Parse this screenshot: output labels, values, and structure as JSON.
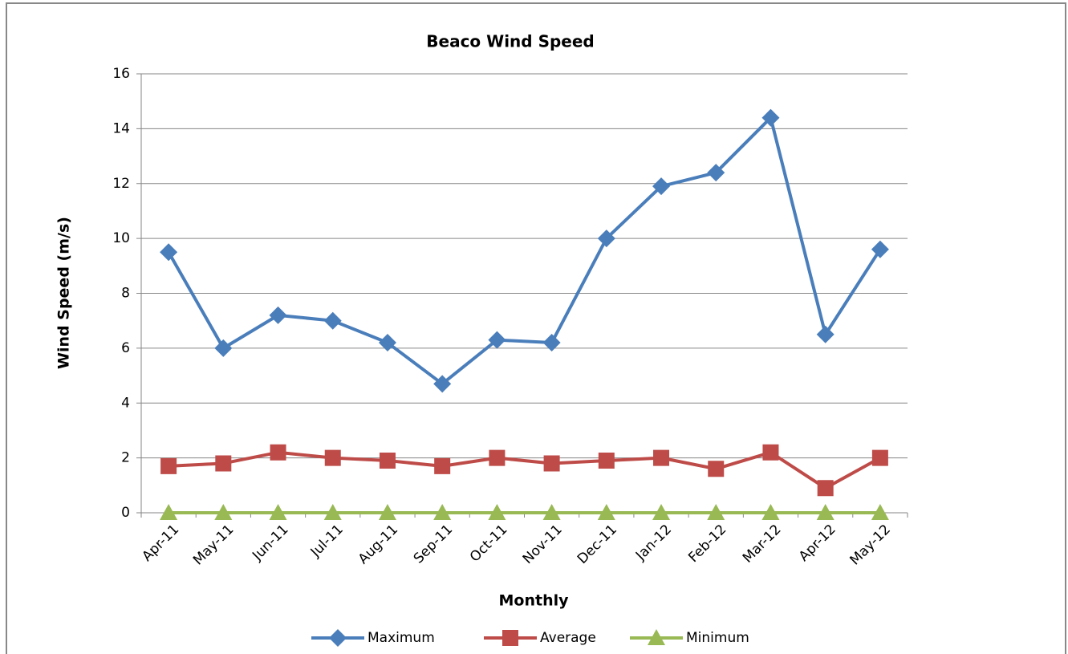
{
  "chart_data": {
    "type": "line",
    "title": "Beaco Wind Speed",
    "x_label": "Monthly",
    "y_label": "Wind Speed (m/s)",
    "categories": [
      "Apr-11",
      "May-11",
      "Jun-11",
      "Jul-11",
      "Aug-11",
      "Sep-11",
      "Oct-11",
      "Nov-11",
      "Dec-11",
      "Jan-12",
      "Feb-12",
      "Mar-12",
      "Apr-12",
      "May-12"
    ],
    "series": [
      {
        "name": "Maximum",
        "color": "#4a7ebb",
        "marker": "diamond",
        "values": [
          9.5,
          6.0,
          7.2,
          7.0,
          6.2,
          4.7,
          6.3,
          6.2,
          10.0,
          11.9,
          12.4,
          14.4,
          6.5,
          9.6
        ]
      },
      {
        "name": "Average",
        "color": "#be4b48",
        "marker": "square",
        "values": [
          1.7,
          1.8,
          2.2,
          2.0,
          1.9,
          1.7,
          2.0,
          1.8,
          1.9,
          2.0,
          1.6,
          2.2,
          0.9,
          2.0
        ]
      },
      {
        "name": "Minimum",
        "color": "#98b954",
        "marker": "triangle",
        "values": [
          0,
          0,
          0,
          0,
          0,
          0,
          0,
          0,
          0,
          0,
          0,
          0,
          0,
          0
        ]
      }
    ],
    "ylim": [
      0,
      16
    ],
    "yticks": [
      0,
      2,
      4,
      6,
      8,
      10,
      12,
      14,
      16
    ],
    "grid": true,
    "legend": "bottom"
  }
}
